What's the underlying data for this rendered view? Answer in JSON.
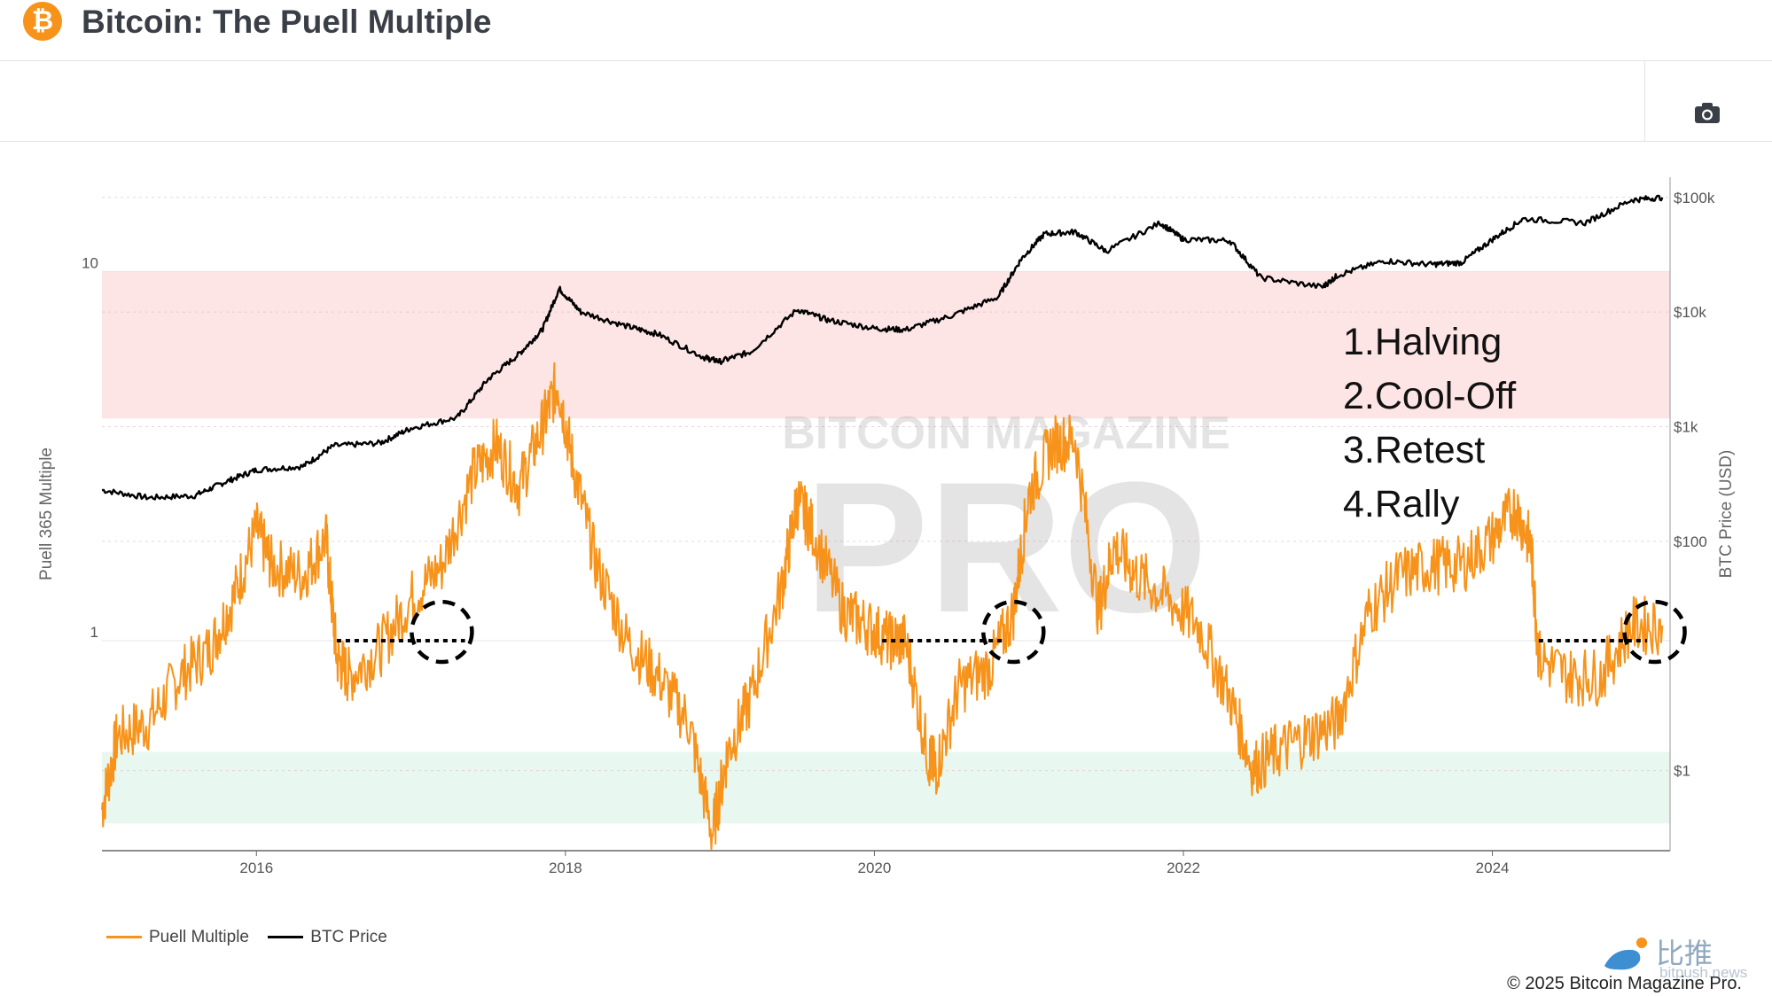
{
  "header": {
    "logo_symbol": "₿",
    "logo_color": "#f7931a",
    "title": "Bitcoin: The Puell Multiple"
  },
  "toolbar": {
    "camera_icon": "camera-icon"
  },
  "chart_data": {
    "type": "line",
    "title": "Bitcoin: The Puell Multiple",
    "x_ticks": [
      "2016",
      "2018",
      "2020",
      "2022",
      "2024"
    ],
    "y_left": {
      "label": "Puell 365 Multiple",
      "scale": "log",
      "range": [
        0.27,
        18
      ],
      "ticks": [
        "10",
        "1"
      ]
    },
    "y_right": {
      "label": "BTC Price (USD)",
      "scale": "log",
      "range": [
        0.2,
        150000
      ],
      "ticks": [
        "$100k",
        "$10k",
        "$1k",
        "$100",
        "$1"
      ]
    },
    "bands": [
      {
        "name": "overvalued",
        "from": 4,
        "to": 10,
        "color": "#fde5e5"
      },
      {
        "name": "undervalued",
        "from": 0.32,
        "to": 0.5,
        "color": "#e8f8f1"
      }
    ],
    "series": [
      {
        "name": "Puell Multiple",
        "color": "#f7931a",
        "x": [
          2015.0,
          2015.1,
          2015.3,
          2015.5,
          2015.7,
          2015.85,
          2016.0,
          2016.1,
          2016.3,
          2016.45,
          2016.52,
          2016.6,
          2016.8,
          2017.0,
          2017.2,
          2017.4,
          2017.55,
          2017.7,
          2017.85,
          2017.95,
          2018.05,
          2018.2,
          2018.4,
          2018.6,
          2018.8,
          2018.95,
          2019.05,
          2019.2,
          2019.4,
          2019.5,
          2019.6,
          2019.8,
          2019.95,
          2020.1,
          2020.2,
          2020.35,
          2020.4,
          2020.55,
          2020.75,
          2020.9,
          2021.0,
          2021.15,
          2021.3,
          2021.45,
          2021.55,
          2021.7,
          2021.9,
          2022.1,
          2022.3,
          2022.45,
          2022.6,
          2022.8,
          2023.0,
          2023.2,
          2023.4,
          2023.6,
          2023.8,
          2024.0,
          2024.15,
          2024.25,
          2024.3,
          2024.5,
          2024.7,
          2024.9,
          2025.1
        ],
        "values": [
          0.35,
          0.55,
          0.6,
          0.8,
          0.95,
          1.3,
          2.0,
          1.6,
          1.5,
          1.9,
          0.9,
          0.8,
          0.95,
          1.3,
          1.6,
          2.8,
          3.4,
          2.6,
          3.8,
          5.0,
          3.0,
          1.6,
          1.0,
          0.8,
          0.6,
          0.3,
          0.5,
          0.7,
          1.4,
          2.4,
          2.0,
          1.2,
          1.1,
          1.0,
          1.0,
          0.48,
          0.45,
          0.75,
          0.85,
          1.2,
          2.5,
          3.4,
          3.5,
          1.2,
          1.8,
          1.5,
          1.3,
          1.1,
          0.7,
          0.45,
          0.5,
          0.55,
          0.6,
          1.2,
          1.5,
          1.6,
          1.6,
          1.9,
          2.3,
          1.8,
          0.9,
          0.8,
          0.8,
          1.1,
          1.1
        ]
      },
      {
        "name": "BTC Price",
        "color": "#000000",
        "x": [
          2015.0,
          2015.3,
          2015.6,
          2015.8,
          2016.0,
          2016.3,
          2016.5,
          2016.8,
          2017.0,
          2017.3,
          2017.5,
          2017.7,
          2017.85,
          2017.96,
          2018.1,
          2018.4,
          2018.6,
          2018.9,
          2019.0,
          2019.2,
          2019.5,
          2019.7,
          2020.0,
          2020.2,
          2020.5,
          2020.8,
          2020.95,
          2021.1,
          2021.3,
          2021.5,
          2021.85,
          2022.0,
          2022.3,
          2022.5,
          2022.9,
          2023.0,
          2023.3,
          2023.6,
          2023.8,
          2024.0,
          2024.2,
          2024.6,
          2024.9,
          2025.1
        ],
        "values": [
          280,
          240,
          250,
          330,
          420,
          450,
          680,
          720,
          970,
          1200,
          2600,
          4300,
          7000,
          16000,
          10000,
          7500,
          6400,
          4000,
          3700,
          4500,
          10500,
          8500,
          7200,
          7000,
          9300,
          13500,
          29000,
          48000,
          50000,
          34000,
          60000,
          43000,
          42000,
          20000,
          16500,
          21000,
          28000,
          26000,
          27000,
          43000,
          65000,
          60000,
          95000,
          100000
        ]
      }
    ],
    "annotations": {
      "list": [
        "1.Halving",
        "2.Cool-Off",
        "3.Retest",
        "4.Rally"
      ],
      "halving_markers": [
        {
          "x_start": 2016.52,
          "x_end": 2017.35,
          "x_circle": 2017.2,
          "y": 1.0
        },
        {
          "x_start": 2020.05,
          "x_end": 2020.85,
          "x_circle": 2020.9,
          "y": 1.0
        },
        {
          "x_start": 2024.3,
          "x_end": 2025.0,
          "x_circle": 2025.05,
          "y": 1.0
        }
      ]
    },
    "watermark": {
      "line1": "BITCOIN MAGAZINE",
      "line2": "PRO"
    },
    "legend_position": "bottom-left",
    "grid": true
  },
  "legend": [
    {
      "label": "Puell Multiple",
      "color": "#f7931a"
    },
    {
      "label": "BTC Price",
      "color": "#000000"
    }
  ],
  "footer": {
    "brand_cn": "比推",
    "brand_url": "bitpush.news",
    "copyright": "© 2025 Bitcoin Magazine Pro."
  }
}
